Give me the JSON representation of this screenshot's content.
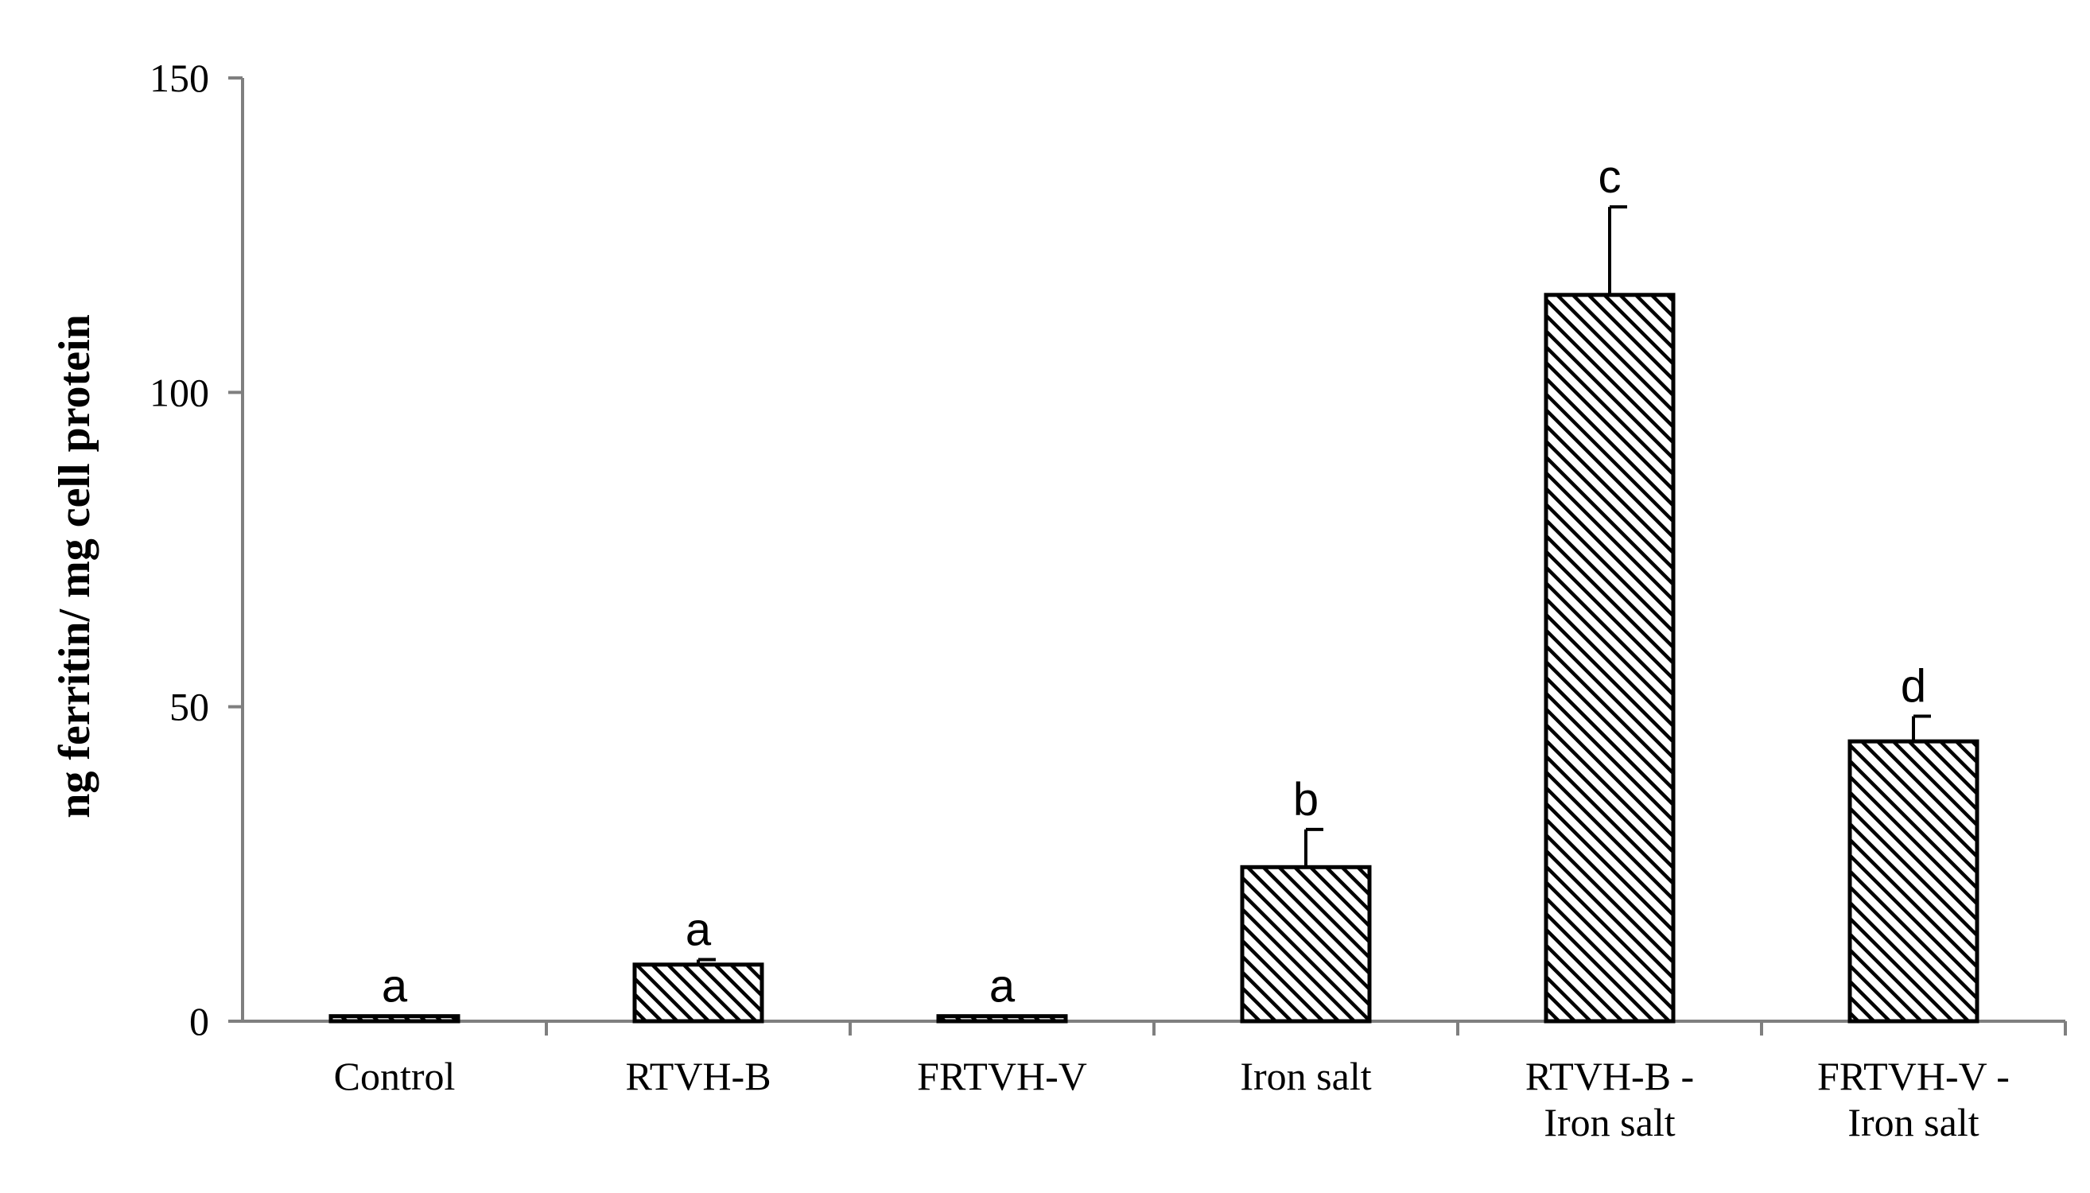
{
  "chart_data": {
    "type": "bar",
    "ylabel": "ng ferritin/ mg cell protein",
    "ylim": [
      0,
      150
    ],
    "yticks": [
      0,
      50,
      100,
      150
    ],
    "categories": [
      [
        "Control"
      ],
      [
        "RTVH-B"
      ],
      [
        "FRTVH-V"
      ],
      [
        "Iron salt"
      ],
      [
        "RTVH-B -",
        "Iron salt"
      ],
      [
        "FRTVH-V -",
        "Iron salt"
      ]
    ],
    "values": [
      0.8,
      9,
      0.8,
      24.5,
      115.5,
      44.5
    ],
    "errors": [
      0,
      0.8,
      0,
      6,
      14,
      4
    ],
    "significance": [
      "a",
      "a",
      "a",
      "b",
      "c",
      "d"
    ],
    "bar_pattern": "diagonal-hatch",
    "bar_color": "#000000",
    "grid": false
  }
}
